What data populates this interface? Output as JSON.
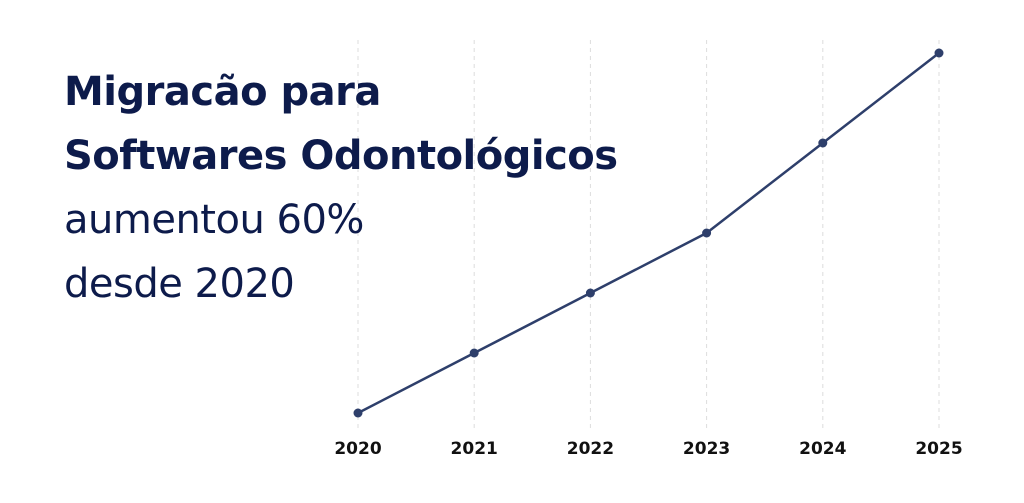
{
  "headline": {
    "line1": "Migracão para",
    "line2": "Softwares Odontológicos",
    "line3": "aumentou 60%",
    "line4": "desde 2020"
  },
  "colors": {
    "text": "#0d1b4b",
    "line": "#2e3f6b",
    "grid": "#dddddd",
    "tick": "#111111"
  },
  "chart_data": {
    "type": "line",
    "x": [
      "2020",
      "2021",
      "2022",
      "2023",
      "2024",
      "2025"
    ],
    "series": [
      {
        "values": [
          100,
          110,
          120,
          130,
          145,
          160
        ]
      }
    ],
    "ylim": [
      100,
      160
    ],
    "grid": "vertical-dashed",
    "legend": "none"
  }
}
